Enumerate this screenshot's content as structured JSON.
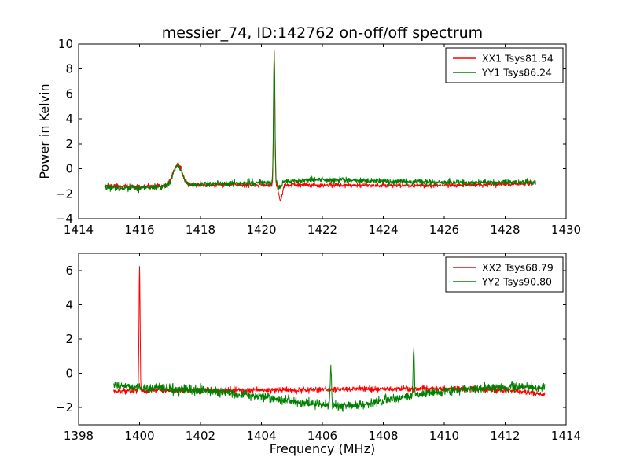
{
  "chart_data": [
    {
      "type": "line",
      "title": "messier_74, ID:142762 on-off/off spectrum",
      "xlabel": "",
      "ylabel": "Power in Kelvin",
      "xlim": [
        1414,
        1430
      ],
      "ylim": [
        -4,
        10
      ],
      "xticks": [
        1414,
        1416,
        1418,
        1420,
        1422,
        1424,
        1426,
        1428,
        1430
      ],
      "yticks": [
        -4,
        -2,
        0,
        2,
        4,
        6,
        8,
        10
      ],
      "grid": false,
      "legend_position": "upper right",
      "series": [
        {
          "name": "XX1 Tsys81.54",
          "color": "#ff0000",
          "x_start": 1414.85,
          "x_end": 1429.0,
          "noise_sigma": 0.09,
          "seed": 11,
          "baseline_points": [
            [
              1414.85,
              -1.35
            ],
            [
              1416.0,
              -1.45
            ],
            [
              1416.9,
              -1.4
            ],
            [
              1417.9,
              -1.3
            ],
            [
              1419.5,
              -1.3
            ],
            [
              1421.0,
              -1.3
            ],
            [
              1423.0,
              -1.3
            ],
            [
              1425.0,
              -1.35
            ],
            [
              1427.0,
              -1.3
            ],
            [
              1428.2,
              -1.2
            ],
            [
              1429.0,
              -1.15
            ]
          ],
          "features": [
            {
              "x": 1417.25,
              "amp": 1.7,
              "sigma": 0.15,
              "sharp": false
            },
            {
              "x": 1420.42,
              "amp": 10.85,
              "sigma": 0.022,
              "sharp": true
            },
            {
              "x": 1420.63,
              "amp": -1.25,
              "sigma": 0.055,
              "sharp": false
            }
          ]
        },
        {
          "name": "YY1 Tsys86.24",
          "color": "#008000",
          "x_start": 1414.85,
          "x_end": 1429.0,
          "noise_sigma": 0.11,
          "seed": 22,
          "baseline_points": [
            [
              1414.85,
              -1.45
            ],
            [
              1415.6,
              -1.55
            ],
            [
              1416.6,
              -1.5
            ],
            [
              1417.9,
              -1.25
            ],
            [
              1419.2,
              -1.15
            ],
            [
              1420.3,
              -1.1
            ],
            [
              1421.4,
              -0.9
            ],
            [
              1422.6,
              -0.9
            ],
            [
              1424.0,
              -1.0
            ],
            [
              1425.5,
              -1.05
            ],
            [
              1427.0,
              -1.1
            ],
            [
              1428.2,
              -1.05
            ],
            [
              1429.0,
              -1.1
            ]
          ],
          "features": [
            {
              "x": 1417.25,
              "amp": 1.6,
              "sigma": 0.15,
              "sharp": false
            },
            {
              "x": 1420.42,
              "amp": 10.3,
              "sigma": 0.024,
              "sharp": true
            },
            {
              "x": 1420.6,
              "amp": -0.5,
              "sigma": 0.05,
              "sharp": false
            }
          ]
        }
      ]
    },
    {
      "type": "line",
      "title": "",
      "xlabel": "Frequency (MHz)",
      "ylabel": "",
      "xlim": [
        1398,
        1414
      ],
      "ylim": [
        -3,
        7
      ],
      "xticks": [
        1398,
        1400,
        1402,
        1404,
        1406,
        1408,
        1410,
        1412,
        1414
      ],
      "yticks": [
        -2,
        0,
        2,
        4,
        6
      ],
      "grid": false,
      "legend_position": "upper right",
      "series": [
        {
          "name": "XX2 Tsys68.79",
          "color": "#ff0000",
          "x_start": 1399.15,
          "x_end": 1413.3,
          "noise_sigma": 0.08,
          "seed": 33,
          "baseline_points": [
            [
              1399.15,
              -1.05
            ],
            [
              1400.5,
              -1.0
            ],
            [
              1403.0,
              -1.0
            ],
            [
              1406.0,
              -0.95
            ],
            [
              1409.0,
              -0.9
            ],
            [
              1411.0,
              -0.9
            ],
            [
              1412.3,
              -1.0
            ],
            [
              1413.3,
              -1.25
            ]
          ],
          "features": [
            {
              "x": 1400.0,
              "amp": 7.25,
              "sigma": 0.018,
              "sharp": true
            }
          ]
        },
        {
          "name": "YY2 Tsys90.80",
          "color": "#008000",
          "x_start": 1399.15,
          "x_end": 1413.3,
          "noise_sigma": 0.13,
          "seed": 44,
          "baseline_points": [
            [
              1399.15,
              -0.7
            ],
            [
              1400.0,
              -0.85
            ],
            [
              1401.5,
              -0.95
            ],
            [
              1403.0,
              -1.15
            ],
            [
              1404.5,
              -1.5
            ],
            [
              1405.5,
              -1.75
            ],
            [
              1406.5,
              -1.9
            ],
            [
              1407.3,
              -1.85
            ],
            [
              1408.0,
              -1.6
            ],
            [
              1409.0,
              -1.3
            ],
            [
              1410.0,
              -1.05
            ],
            [
              1411.0,
              -0.9
            ],
            [
              1412.0,
              -0.8
            ],
            [
              1413.3,
              -0.85
            ]
          ],
          "features": [
            {
              "x": 1406.28,
              "amp": 2.35,
              "sigma": 0.02,
              "sharp": true
            },
            {
              "x": 1409.0,
              "amp": 2.7,
              "sigma": 0.02,
              "sharp": true
            }
          ]
        }
      ]
    }
  ],
  "style": {
    "background": "#ffffff",
    "axes_color": "#000000",
    "red_series_color": "#ff0000",
    "green_series_color": "#008000"
  }
}
